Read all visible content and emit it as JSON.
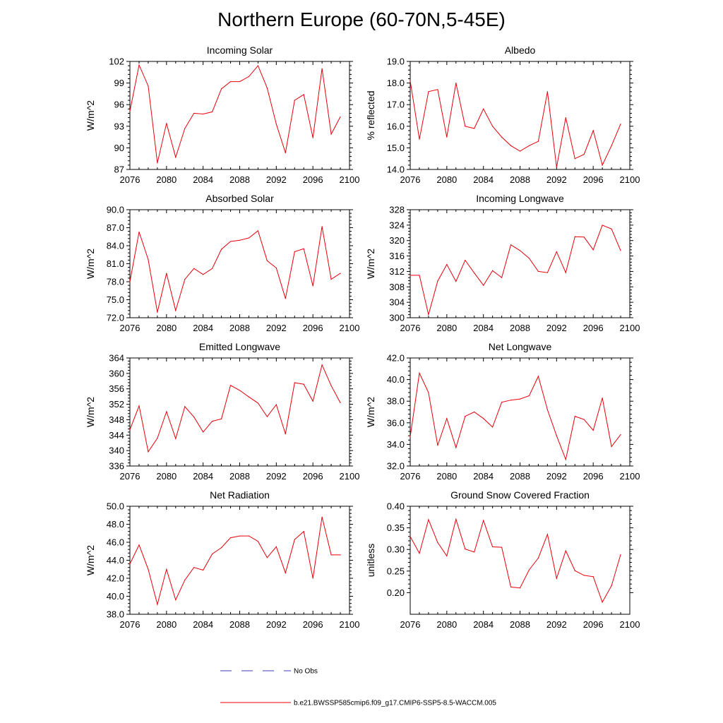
{
  "page": {
    "title": "Northern Europe (60-70N,5-45E)"
  },
  "colors": {
    "model_line": "#e8000b",
    "obs_line": "#3c3cb4",
    "axis": "#000000"
  },
  "legend": {
    "obs_label": "No Obs",
    "model_label": "b.e21.BWSSP585cmip6.f09_g17.CMIP6-SSP5-8.5-WACCM.005"
  },
  "chart_data": [
    {
      "type": "line",
      "title": "Incoming Solar",
      "ylabel": "W/m^2",
      "xlabel": "",
      "xlim": [
        2076,
        2100
      ],
      "ylim": [
        87,
        102
      ],
      "xticks": [
        2076,
        2080,
        2084,
        2088,
        2092,
        2096,
        2100
      ],
      "xtick_labels": [
        "2076",
        "2080",
        "2084",
        "2088",
        "2092",
        "2096",
        "2100"
      ],
      "yticks": [
        87,
        90,
        93,
        96,
        99,
        102
      ],
      "ytick_labels": [
        "87",
        "90",
        "93",
        "96",
        "99",
        "102"
      ],
      "x": [
        2076,
        2077,
        2078,
        2079,
        2080,
        2081,
        2082,
        2083,
        2084,
        2085,
        2086,
        2087,
        2088,
        2089,
        2090,
        2091,
        2092,
        2093,
        2094,
        2095,
        2096,
        2097,
        2098,
        2099
      ],
      "values": [
        95.1,
        101.5,
        98.6,
        87.9,
        93.4,
        88.7,
        92.7,
        94.8,
        94.7,
        95.0,
        98.2,
        99.2,
        99.2,
        99.9,
        101.4,
        98.3,
        93.3,
        89.3,
        96.6,
        97.4,
        91.4,
        101.0,
        91.9,
        94.3
      ]
    },
    {
      "type": "line",
      "title": "Albedo",
      "ylabel": "% reflected",
      "xlabel": "",
      "xlim": [
        2076,
        2100
      ],
      "ylim": [
        14.0,
        19.0
      ],
      "xticks": [
        2076,
        2080,
        2084,
        2088,
        2092,
        2096,
        2100
      ],
      "xtick_labels": [
        "2076",
        "2080",
        "2084",
        "2088",
        "2092",
        "2096",
        "2100"
      ],
      "yticks": [
        14,
        15,
        16,
        17,
        18,
        19
      ],
      "ytick_labels": [
        "14.0",
        "15.0",
        "16.0",
        "17.0",
        "18.0",
        "19.0"
      ],
      "x": [
        2076,
        2077,
        2078,
        2079,
        2080,
        2081,
        2082,
        2083,
        2084,
        2085,
        2086,
        2087,
        2088,
        2089,
        2090,
        2091,
        2092,
        2093,
        2094,
        2095,
        2096,
        2097,
        2098,
        2099
      ],
      "values": [
        18.1,
        15.4,
        17.6,
        17.7,
        15.5,
        18.0,
        16.0,
        15.9,
        16.8,
        16.0,
        15.5,
        15.1,
        14.85,
        15.1,
        15.3,
        17.6,
        14.1,
        16.4,
        14.5,
        14.7,
        15.8,
        14.2,
        15.1,
        16.1
      ]
    },
    {
      "type": "line",
      "title": "Absorbed Solar",
      "ylabel": "W/m^2",
      "xlabel": "",
      "xlim": [
        2076,
        2100
      ],
      "ylim": [
        72.0,
        90.0
      ],
      "xticks": [
        2076,
        2080,
        2084,
        2088,
        2092,
        2096,
        2100
      ],
      "xtick_labels": [
        "2076",
        "2080",
        "2084",
        "2088",
        "2092",
        "2096",
        "2100"
      ],
      "yticks": [
        72,
        75,
        78,
        81,
        84,
        87,
        90
      ],
      "ytick_labels": [
        "72.0",
        "75.0",
        "78.0",
        "81.0",
        "84.0",
        "87.0",
        "90.0"
      ],
      "x": [
        2076,
        2077,
        2078,
        2079,
        2080,
        2081,
        2082,
        2083,
        2084,
        2085,
        2086,
        2087,
        2088,
        2089,
        2090,
        2091,
        2092,
        2093,
        2094,
        2095,
        2096,
        2097,
        2098,
        2099
      ],
      "values": [
        78.0,
        86.3,
        81.7,
        72.9,
        79.4,
        73.2,
        78.4,
        80.2,
        79.2,
        80.2,
        83.4,
        84.7,
        84.9,
        85.3,
        86.5,
        81.5,
        80.3,
        75.2,
        83.0,
        83.5,
        77.3,
        87.2,
        78.4,
        79.4
      ]
    },
    {
      "type": "line",
      "title": "Incoming Longwave",
      "ylabel": "W/m^2",
      "xlabel": "",
      "xlim": [
        2076,
        2100
      ],
      "ylim": [
        300,
        328
      ],
      "xticks": [
        2076,
        2080,
        2084,
        2088,
        2092,
        2096,
        2100
      ],
      "xtick_labels": [
        "2076",
        "2080",
        "2084",
        "2088",
        "2092",
        "2096",
        "2100"
      ],
      "yticks": [
        300,
        304,
        308,
        312,
        316,
        320,
        324,
        328
      ],
      "ytick_labels": [
        "300",
        "304",
        "308",
        "312",
        "316",
        "320",
        "324",
        "328"
      ],
      "x": [
        2076,
        2077,
        2078,
        2079,
        2080,
        2081,
        2082,
        2083,
        2084,
        2085,
        2086,
        2087,
        2088,
        2089,
        2090,
        2091,
        2092,
        2093,
        2094,
        2095,
        2096,
        2097,
        2098,
        2099
      ],
      "values": [
        311.0,
        311.0,
        300.8,
        309.5,
        313.8,
        309.4,
        314.9,
        311.6,
        308.4,
        312.2,
        310.4,
        318.9,
        317.4,
        315.4,
        312.0,
        311.7,
        317.1,
        311.7,
        321.0,
        320.9,
        317.6,
        324.0,
        323.0,
        317.4
      ]
    },
    {
      "type": "line",
      "title": "Emitted Longwave",
      "ylabel": "W/m^2",
      "xlabel": "",
      "xlim": [
        2076,
        2100
      ],
      "ylim": [
        336,
        364
      ],
      "xticks": [
        2076,
        2080,
        2084,
        2088,
        2092,
        2096,
        2100
      ],
      "xtick_labels": [
        "2076",
        "2080",
        "2084",
        "2088",
        "2092",
        "2096",
        "2100"
      ],
      "yticks": [
        336,
        340,
        344,
        348,
        352,
        356,
        360,
        364
      ],
      "ytick_labels": [
        "336",
        "340",
        "344",
        "348",
        "352",
        "356",
        "360",
        "364"
      ],
      "x": [
        2076,
        2077,
        2078,
        2079,
        2080,
        2081,
        2082,
        2083,
        2084,
        2085,
        2086,
        2087,
        2088,
        2089,
        2090,
        2091,
        2092,
        2093,
        2094,
        2095,
        2096,
        2097,
        2098,
        2099
      ],
      "values": [
        345.4,
        351.6,
        339.7,
        343.2,
        350.1,
        343.1,
        351.4,
        348.7,
        344.8,
        347.6,
        348.2,
        356.9,
        355.6,
        353.9,
        352.3,
        348.8,
        351.9,
        344.3,
        357.6,
        357.2,
        352.8,
        362.2,
        356.8,
        352.4
      ]
    },
    {
      "type": "line",
      "title": "Net Longwave",
      "ylabel": "W/m^2",
      "xlabel": "",
      "xlim": [
        2076,
        2100
      ],
      "ylim": [
        32.0,
        42.0
      ],
      "xticks": [
        2076,
        2080,
        2084,
        2088,
        2092,
        2096,
        2100
      ],
      "xtick_labels": [
        "2076",
        "2080",
        "2084",
        "2088",
        "2092",
        "2096",
        "2100"
      ],
      "yticks": [
        32,
        34,
        36,
        38,
        40,
        42
      ],
      "ytick_labels": [
        "32.0",
        "34.0",
        "36.0",
        "38.0",
        "40.0",
        "42.0"
      ],
      "x": [
        2076,
        2077,
        2078,
        2079,
        2080,
        2081,
        2082,
        2083,
        2084,
        2085,
        2086,
        2087,
        2088,
        2089,
        2090,
        2091,
        2092,
        2093,
        2094,
        2095,
        2096,
        2097,
        2098,
        2099
      ],
      "values": [
        34.7,
        40.6,
        38.8,
        33.9,
        36.4,
        33.7,
        36.6,
        37.0,
        36.4,
        35.6,
        37.9,
        38.1,
        38.2,
        38.5,
        40.3,
        37.2,
        34.8,
        32.6,
        36.6,
        36.3,
        35.3,
        38.3,
        33.8,
        34.9
      ]
    },
    {
      "type": "line",
      "title": "Net Radiation",
      "ylabel": "W/m^2",
      "xlabel": "",
      "xlim": [
        2076,
        2100
      ],
      "ylim": [
        38.0,
        50.0
      ],
      "xticks": [
        2076,
        2080,
        2084,
        2088,
        2092,
        2096,
        2100
      ],
      "xtick_labels": [
        "2076",
        "2080",
        "2084",
        "2088",
        "2092",
        "2096",
        "2100"
      ],
      "yticks": [
        38,
        40,
        42,
        44,
        46,
        48,
        50
      ],
      "ytick_labels": [
        "38.0",
        "40.0",
        "42.0",
        "44.0",
        "46.0",
        "48.0",
        "50.0"
      ],
      "x": [
        2076,
        2077,
        2078,
        2079,
        2080,
        2081,
        2082,
        2083,
        2084,
        2085,
        2086,
        2087,
        2088,
        2089,
        2090,
        2091,
        2092,
        2093,
        2094,
        2095,
        2096,
        2097,
        2098,
        2099
      ],
      "values": [
        43.6,
        45.7,
        43.0,
        39.1,
        43.0,
        39.6,
        41.8,
        43.2,
        42.9,
        44.7,
        45.4,
        46.5,
        46.7,
        46.7,
        46.1,
        44.3,
        45.5,
        42.6,
        46.3,
        47.2,
        42.0,
        48.8,
        44.6,
        44.6
      ]
    },
    {
      "type": "line",
      "title": "Ground Snow Covered Fraction",
      "ylabel": "unitless",
      "xlabel": "",
      "xlim": [
        2076,
        2100
      ],
      "ylim": [
        0.15,
        0.4
      ],
      "xticks": [
        2076,
        2080,
        2084,
        2088,
        2092,
        2096,
        2100
      ],
      "xtick_labels": [
        "2076",
        "2080",
        "2084",
        "2088",
        "2092",
        "2096",
        "2100"
      ],
      "yticks": [
        0.2,
        0.25,
        0.3,
        0.35,
        0.4
      ],
      "ytick_labels": [
        "0.20",
        "0.25",
        "0.30",
        "0.35",
        "0.40"
      ],
      "x": [
        2076,
        2077,
        2078,
        2079,
        2080,
        2081,
        2082,
        2083,
        2084,
        2085,
        2086,
        2087,
        2088,
        2089,
        2090,
        2091,
        2092,
        2093,
        2094,
        2095,
        2096,
        2097,
        2098,
        2099
      ],
      "values": [
        0.33,
        0.291,
        0.369,
        0.316,
        0.285,
        0.37,
        0.301,
        0.294,
        0.367,
        0.306,
        0.305,
        0.213,
        0.211,
        0.253,
        0.28,
        0.335,
        0.233,
        0.297,
        0.251,
        0.24,
        0.237,
        0.178,
        0.216,
        0.288
      ]
    }
  ]
}
